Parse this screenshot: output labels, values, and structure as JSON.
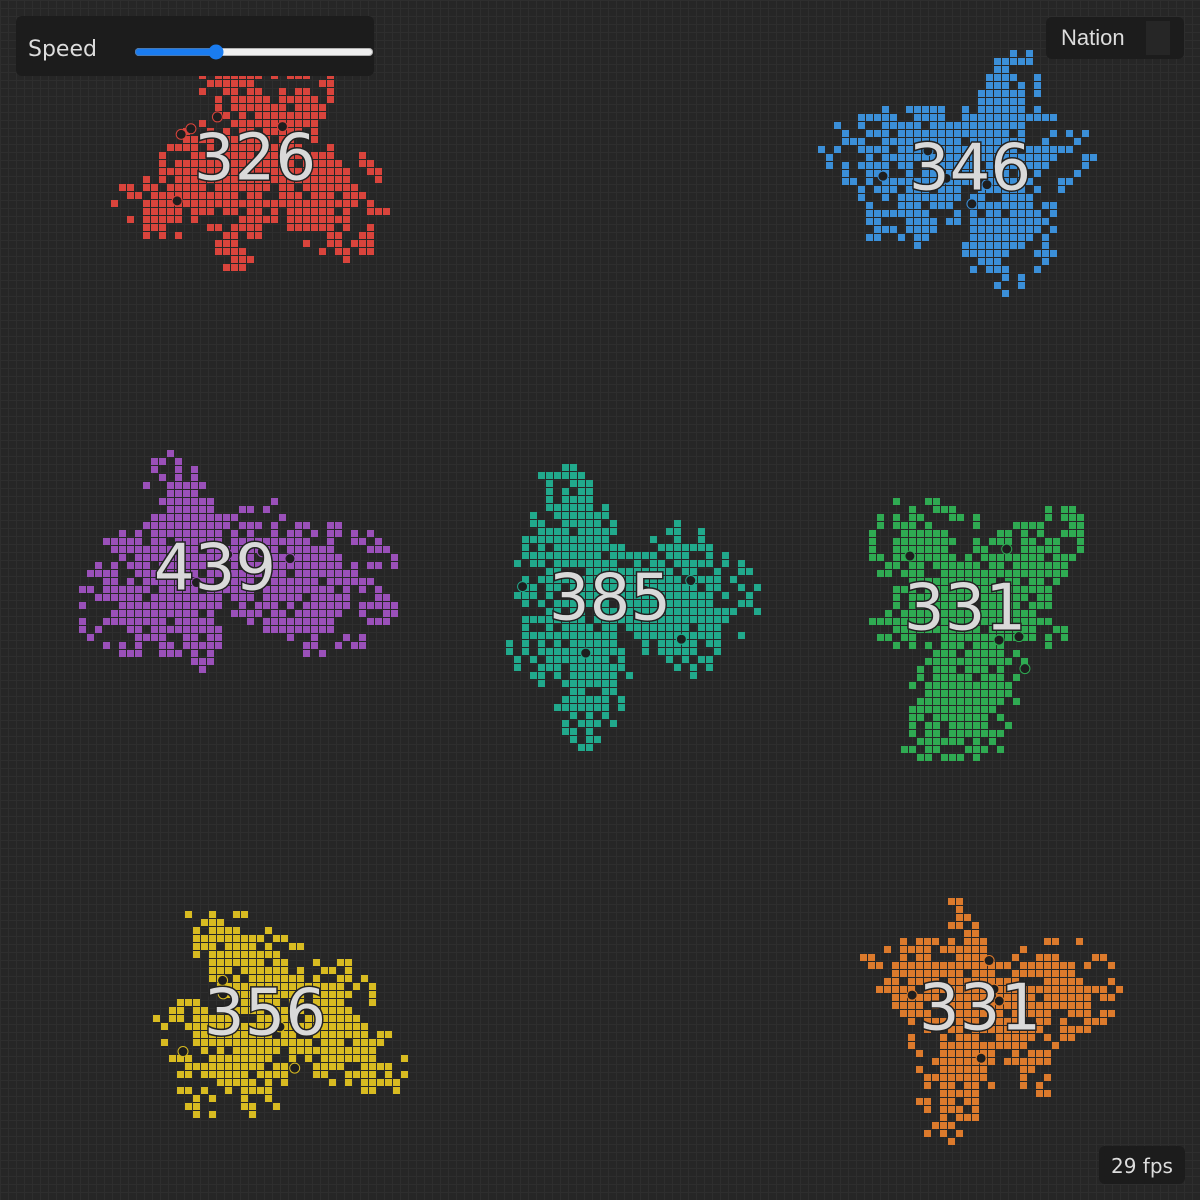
{
  "controls": {
    "speed_label": "Speed",
    "nation_button": "Nation"
  },
  "nations": [
    {
      "label": 326,
      "color": "#d9443c"
    },
    {
      "label": 346,
      "color": "#3b8fd8"
    },
    {
      "label": 439,
      "color": "#9a50b9"
    },
    {
      "label": 385,
      "color": "#21a98c"
    },
    {
      "label": 331,
      "color": "#2faa52"
    },
    {
      "label": 356,
      "color": "#d8bb21"
    },
    {
      "label": 331,
      "color": "#dc7a2c"
    }
  ],
  "status": {
    "fps": "29 fps"
  }
}
